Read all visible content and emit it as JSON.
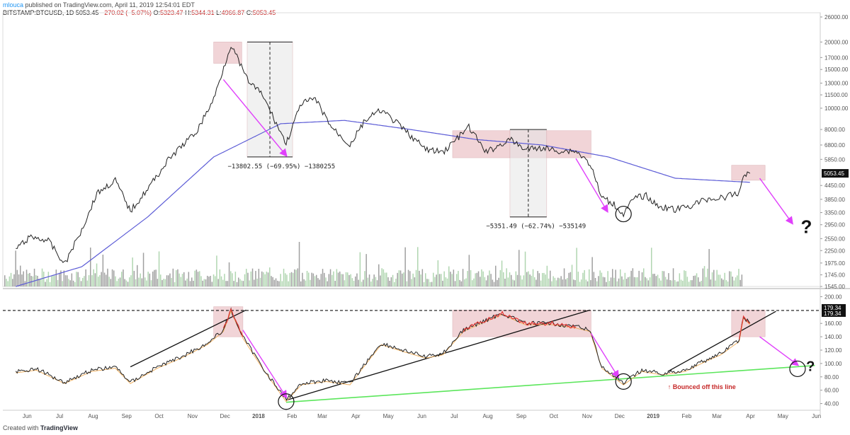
{
  "header": {
    "author": "mlouca",
    "published": "published on TradingView.com, April 11, 2019 12:54:01 EDT",
    "symbol": "BITSTAMP:BTCUSD, 1D",
    "last": "5053.45",
    "change": "−270.02 (−5.07%)",
    "open_label": "O:",
    "open": "5323.47",
    "high_label": "H:",
    "high": "5344.31",
    "low_label": "L:",
    "low": "4966.87",
    "close_label": "C:",
    "close": "5053.45"
  },
  "footer": {
    "created": "Created with",
    "brand": "TradingView"
  },
  "colors": {
    "price_line": "#222222",
    "ma_line": "#5b5bd6",
    "volume_up": "#9ccc9c",
    "volume_down": "#888888",
    "indicator": "#222222",
    "indicator_hot": "#e53935",
    "indicator_signal": "#f0b060",
    "box": "#e9b9bd",
    "arrow": "#e040fb",
    "support": "#5ce65c",
    "resistance": "#111111"
  },
  "chart_data": [
    {
      "type": "line",
      "panel": "price",
      "y_scale": "log",
      "ylim": [
        1545,
        26000
      ],
      "yticks": [
        "26000.00",
        "20000.00",
        "17000.00",
        "15000.00",
        "13000.00",
        "11500.00",
        "10000.00",
        "8000.00",
        "6800.00",
        "5850.00",
        "5053.45",
        "4450.00",
        "3850.00",
        "3350.00",
        "2950.00",
        "2550.00",
        "2250.00",
        "1975.00",
        "1745.00",
        "1545.00"
      ],
      "last_price_label": "5053.45",
      "x_labels": [
        "Jun",
        "Jul",
        "Aug",
        "Sep",
        "Oct",
        "Nov",
        "Dec",
        "2018",
        "Feb",
        "Mar",
        "Apr",
        "May",
        "Jun",
        "Jul",
        "Aug",
        "Sep",
        "Oct",
        "Nov",
        "Dec",
        "2019",
        "Feb",
        "Mar",
        "Apr",
        "May",
        "Jun"
      ],
      "series": [
        {
          "x": [
            "2017-06-01",
            "2017-06-15",
            "2017-07-01",
            "2017-07-16",
            "2017-08-01",
            "2017-08-15",
            "2017-09-01",
            "2017-09-15",
            "2017-10-01",
            "2017-10-20",
            "2017-11-01",
            "2017-11-15",
            "2017-12-01",
            "2017-12-17",
            "2018-01-01",
            "2018-01-15",
            "2018-02-06",
            "2018-02-20",
            "2018-03-05",
            "2018-03-20",
            "2018-04-06",
            "2018-04-20",
            "2018-05-05",
            "2018-05-20",
            "2018-06-01",
            "2018-06-15",
            "2018-07-01",
            "2018-07-25",
            "2018-08-10",
            "2018-09-01",
            "2018-09-15",
            "2018-10-01",
            "2018-10-15",
            "2018-11-01",
            "2018-11-14",
            "2018-11-25",
            "2018-12-05",
            "2018-12-15",
            "2018-12-25",
            "2019-01-05",
            "2019-01-15",
            "2019-02-01",
            "2019-02-15",
            "2019-03-01",
            "2019-03-15",
            "2019-04-01",
            "2019-04-05",
            "2019-04-11"
          ],
          "values": [
            2300,
            2600,
            2500,
            1950,
            2800,
            4100,
            4700,
            3400,
            4300,
            5800,
            6700,
            7800,
            11000,
            19500,
            13500,
            11500,
            6900,
            10500,
            11000,
            8200,
            6800,
            8800,
            9800,
            8500,
            7500,
            6500,
            6300,
            8200,
            6300,
            7200,
            6500,
            6600,
            6400,
            6400,
            5600,
            3900,
            3700,
            3300,
            3900,
            4000,
            3600,
            3450,
            3600,
            3850,
            3900,
            4100,
            5000,
            5053
          ]
        },
        {
          "x": [
            "2017-06-01",
            "2017-08-01",
            "2017-10-01",
            "2017-12-01",
            "2018-02-01",
            "2018-04-01",
            "2018-06-01",
            "2018-08-01",
            "2018-10-01",
            "2018-12-01",
            "2019-02-01",
            "2019-04-11"
          ],
          "values": [
            1545,
            1900,
            3200,
            6000,
            8500,
            8800,
            8000,
            7200,
            6800,
            6000,
            4800,
            4600
          ]
        }
      ],
      "annotations": [
        "−13802.55 (−69.95%) −1380255",
        "−5351.49 (−62.74%) −535149",
        "?"
      ]
    },
    {
      "type": "line",
      "panel": "indicator",
      "ylim": [
        30,
        210
      ],
      "yticks": [
        "200.00",
        "179.34",
        "179.34",
        "160.00",
        "140.00",
        "120.00",
        "100.00",
        "80.00",
        "60.00",
        "40.00"
      ],
      "x_labels": [
        "Jun",
        "Jul",
        "Aug",
        "Sep",
        "Oct",
        "Nov",
        "Dec",
        "2018",
        "Feb",
        "Mar",
        "Apr",
        "May",
        "Jun",
        "Jul",
        "Aug",
        "Sep",
        "Oct",
        "Nov",
        "Dec",
        "2019",
        "Feb",
        "Mar",
        "Apr",
        "May",
        "Jun"
      ],
      "series": [
        {
          "x": [
            "2017-06-01",
            "2017-06-20",
            "2017-07-16",
            "2017-08-10",
            "2017-09-01",
            "2017-09-15",
            "2017-10-10",
            "2017-11-01",
            "2017-11-25",
            "2017-12-10",
            "2017-12-17",
            "2017-12-28",
            "2018-01-15",
            "2018-02-06",
            "2018-02-20",
            "2018-03-15",
            "2018-04-06",
            "2018-04-25",
            "2018-05-05",
            "2018-05-25",
            "2018-06-15",
            "2018-07-01",
            "2018-07-20",
            "2018-08-10",
            "2018-08-25",
            "2018-09-15",
            "2018-10-10",
            "2018-11-01",
            "2018-11-14",
            "2018-11-25",
            "2018-12-15",
            "2019-01-01",
            "2019-01-20",
            "2019-02-10",
            "2019-03-01",
            "2019-03-15",
            "2019-04-01",
            "2019-04-05",
            "2019-04-11"
          ],
          "values": [
            88,
            92,
            72,
            90,
            95,
            72,
            95,
            110,
            130,
            150,
            180,
            140,
            95,
            45,
            70,
            75,
            70,
            110,
            130,
            120,
            110,
            115,
            150,
            165,
            175,
            160,
            160,
            155,
            150,
            95,
            70,
            90,
            85,
            90,
            105,
            115,
            135,
            170,
            160
          ]
        }
      ],
      "annotations": [
        "Bounced off this line",
        "?"
      ]
    }
  ]
}
